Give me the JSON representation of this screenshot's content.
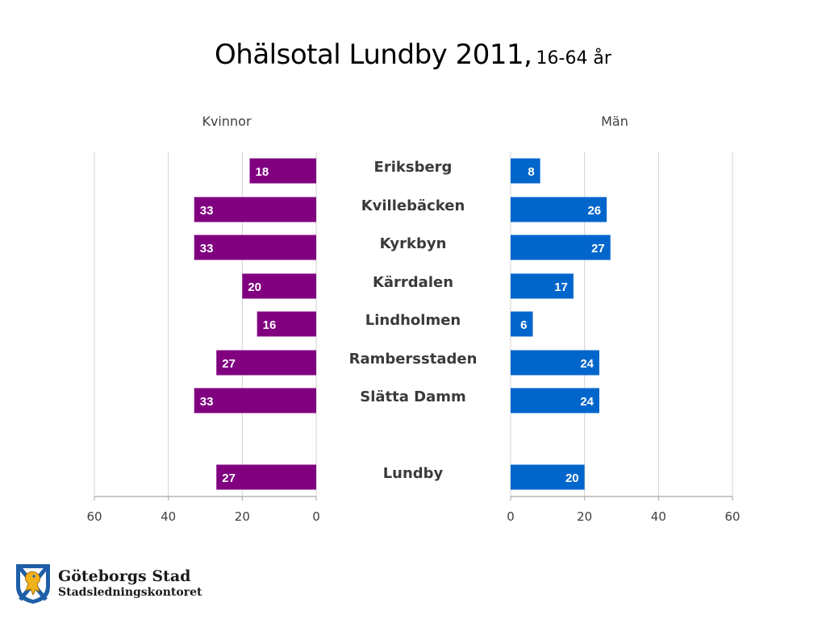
{
  "title": {
    "main": "Ohälsotal Lundby 2011,",
    "sub": "16-64 år"
  },
  "colors": {
    "women": "#800080",
    "men": "#0066CC",
    "grid": "#d3d3d3",
    "axis": "#a6a6a6"
  },
  "logo": {
    "name": "Göteborgs Stad",
    "dept": "Stadsledningskontoret",
    "icon": "coat-of-arms-lion-icon"
  },
  "chart_data": [
    {
      "type": "bar",
      "orientation": "horizontal",
      "direction": "reversed",
      "title": "Kvinnor",
      "categories": [
        "Eriksberg",
        "Kvillebäcken",
        "Kyrkbyn",
        "Kärrdalen",
        "Lindholmen",
        "Rambersstaden",
        "Slätta Damm",
        "Lundby"
      ],
      "values": [
        18,
        33,
        33,
        20,
        16,
        27,
        33,
        27
      ],
      "xlim": [
        0,
        60
      ],
      "xticks": [
        "0",
        "20",
        "40",
        "60"
      ],
      "grid": true,
      "color": "#800080"
    },
    {
      "type": "bar",
      "orientation": "horizontal",
      "direction": "normal",
      "title": "Män",
      "categories": [
        "Eriksberg",
        "Kvillebäcken",
        "Kyrkbyn",
        "Kärrdalen",
        "Lindholmen",
        "Rambersstaden",
        "Slätta Damm",
        "Lundby"
      ],
      "values": [
        8,
        26,
        27,
        17,
        6,
        24,
        24,
        20
      ],
      "xlim": [
        0,
        60
      ],
      "xticks": [
        "0",
        "20",
        "40",
        "60"
      ],
      "grid": true,
      "color": "#0066CC"
    }
  ]
}
